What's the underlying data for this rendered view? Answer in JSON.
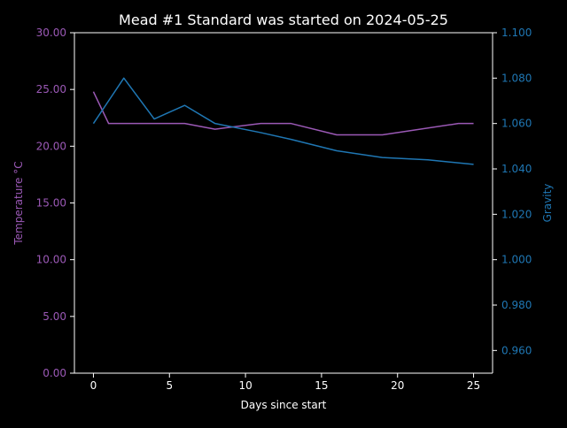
{
  "chart_data": {
    "type": "line",
    "title": "Mead #1 Standard was started on 2024-05-25",
    "xlabel": "Days since start",
    "y1label": "Temperature °C",
    "y2label": "Gravity",
    "xlim": [
      -1.25,
      26.25
    ],
    "y1lim": [
      0,
      30
    ],
    "y2lim": [
      0.95,
      1.1
    ],
    "xticks": [
      0,
      5,
      10,
      15,
      20,
      25
    ],
    "xtick_labels": [
      "0",
      "5",
      "10",
      "15",
      "20",
      "25"
    ],
    "y1ticks": [
      0,
      5,
      10,
      15,
      20,
      25,
      30
    ],
    "y1tick_labels": [
      "0.00",
      "5.00",
      "10.00",
      "15.00",
      "20.00",
      "25.00",
      "30.00"
    ],
    "y2ticks": [
      0.96,
      0.98,
      1.0,
      1.02,
      1.04,
      1.06,
      1.08,
      1.1
    ],
    "y2tick_labels": [
      "0.960",
      "0.980",
      "1.000",
      "1.020",
      "1.040",
      "1.060",
      "1.080",
      "1.100"
    ],
    "grid": false,
    "legend": "none",
    "colors": {
      "background": "#000000",
      "axes": "#ffffff",
      "temperature": "#9b59b6",
      "gravity": "#1f77b4"
    },
    "series": [
      {
        "axis": "left",
        "x": [
          0,
          1,
          6,
          8,
          11,
          13,
          16,
          19,
          24,
          25
        ],
        "values": [
          24.8,
          22.0,
          22.0,
          21.5,
          22.0,
          22.0,
          21.0,
          21.0,
          22.0,
          22.0
        ]
      },
      {
        "axis": "right",
        "x": [
          0,
          2,
          4,
          6,
          8,
          11,
          13,
          16,
          19,
          22,
          25
        ],
        "values": [
          1.06,
          1.08,
          1.062,
          1.068,
          1.06,
          1.056,
          1.053,
          1.048,
          1.045,
          1.044,
          1.042
        ]
      }
    ]
  }
}
